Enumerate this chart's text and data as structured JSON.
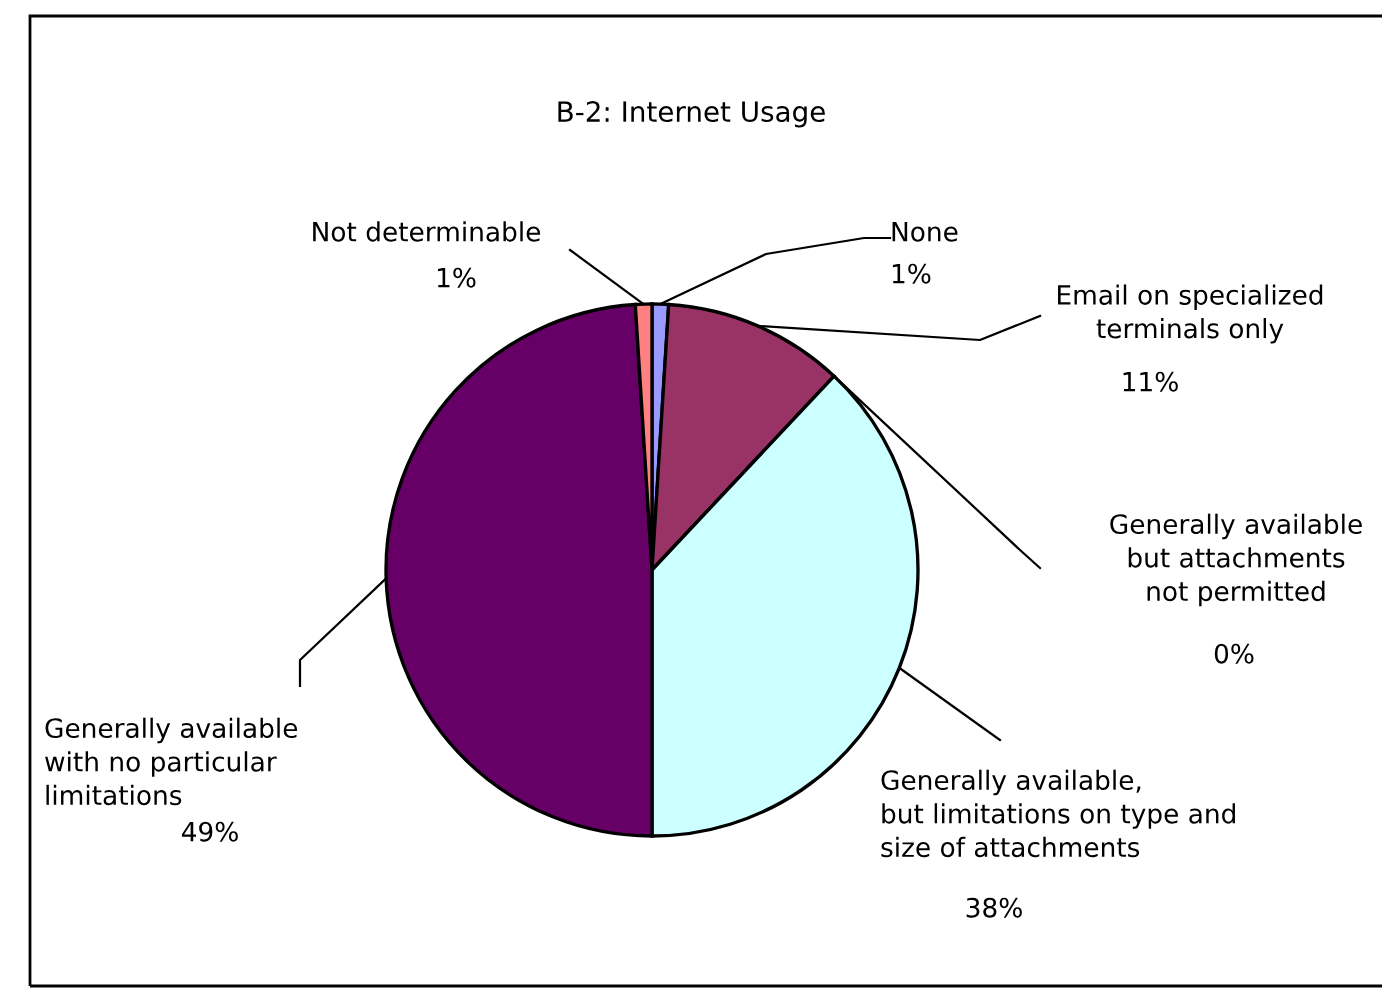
{
  "chart_data": {
    "type": "pie",
    "title": "B-2: Internet Usage",
    "categories": [
      "None",
      "Email on specialized\nterminals only",
      "Generally available\nbut attachments\nnot permitted",
      "Generally available,\nbut limitations on type and\nsize of attachments",
      "Generally available\nwith no particular\nlimitations",
      "Not determinable"
    ],
    "values": [
      1,
      11,
      0,
      38,
      49,
      1
    ],
    "colors": [
      "#9999ff",
      "#993366",
      "#ffffcc",
      "#ccffff",
      "#660066",
      "#ff8080"
    ],
    "value_labels": [
      "1%",
      "11%",
      "0%",
      "38%",
      "49%",
      "1%"
    ]
  }
}
